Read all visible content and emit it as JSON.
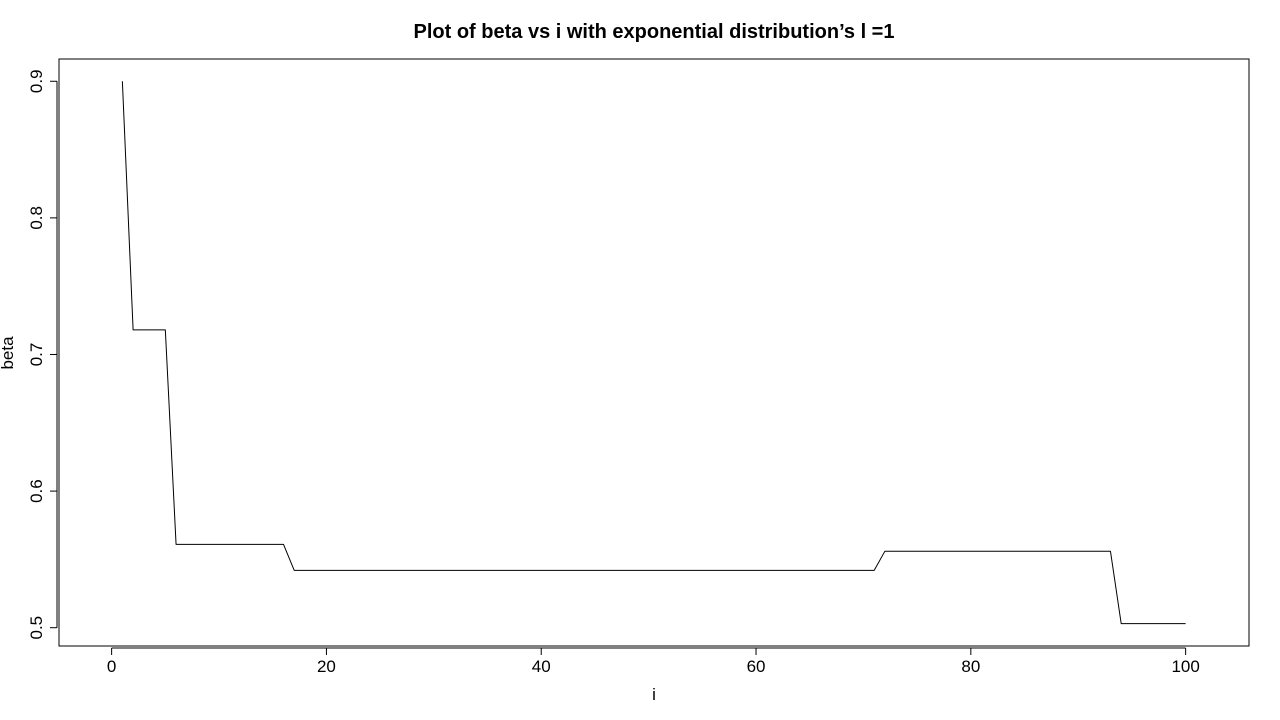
{
  "chart_data": {
    "type": "line",
    "title": "Plot of beta vs i with exponential distribution’s l =1",
    "xlabel": "i",
    "ylabel": "beta",
    "xlim": [
      -4.9,
      105.9
    ],
    "ylim": [
      0.4866,
      0.9163
    ],
    "x_ticks": [
      0,
      20,
      40,
      60,
      80,
      100
    ],
    "x_tick_labels": [
      "0",
      "20",
      "40",
      "60",
      "80",
      "100"
    ],
    "y_ticks": [
      0.5,
      0.6,
      0.7,
      0.8,
      0.9
    ],
    "y_tick_labels": [
      "0.5",
      "0.6",
      "0.7",
      "0.8",
      "0.9"
    ],
    "grid": false,
    "legend": "none",
    "line_color": "#000000",
    "series": [
      {
        "x": [
          1,
          2,
          3,
          4,
          5,
          6,
          7,
          8,
          9,
          10,
          11,
          12,
          13,
          14,
          15,
          16,
          17,
          18,
          19,
          20,
          21,
          22,
          23,
          24,
          25,
          26,
          27,
          28,
          29,
          30,
          31,
          32,
          33,
          34,
          35,
          36,
          37,
          38,
          39,
          40,
          41,
          42,
          43,
          44,
          45,
          46,
          47,
          48,
          49,
          50,
          51,
          52,
          53,
          54,
          55,
          56,
          57,
          58,
          59,
          60,
          61,
          62,
          63,
          64,
          65,
          66,
          67,
          68,
          69,
          70,
          71,
          72,
          73,
          74,
          75,
          76,
          77,
          78,
          79,
          80,
          81,
          82,
          83,
          84,
          85,
          86,
          87,
          88,
          89,
          90,
          91,
          92,
          93,
          94,
          95,
          96,
          97,
          98,
          99,
          100
        ],
        "values": [
          0.9,
          0.718,
          0.718,
          0.718,
          0.718,
          0.561,
          0.561,
          0.561,
          0.561,
          0.561,
          0.561,
          0.561,
          0.561,
          0.561,
          0.561,
          0.561,
          0.542,
          0.542,
          0.542,
          0.542,
          0.542,
          0.542,
          0.542,
          0.542,
          0.542,
          0.542,
          0.542,
          0.542,
          0.542,
          0.542,
          0.542,
          0.542,
          0.542,
          0.542,
          0.542,
          0.542,
          0.542,
          0.542,
          0.542,
          0.542,
          0.542,
          0.542,
          0.542,
          0.542,
          0.542,
          0.542,
          0.542,
          0.542,
          0.542,
          0.542,
          0.542,
          0.542,
          0.542,
          0.542,
          0.542,
          0.542,
          0.542,
          0.542,
          0.542,
          0.542,
          0.542,
          0.542,
          0.542,
          0.542,
          0.542,
          0.542,
          0.542,
          0.542,
          0.542,
          0.542,
          0.542,
          0.556,
          0.556,
          0.556,
          0.556,
          0.556,
          0.556,
          0.556,
          0.556,
          0.556,
          0.556,
          0.556,
          0.556,
          0.556,
          0.556,
          0.556,
          0.556,
          0.556,
          0.556,
          0.556,
          0.556,
          0.556,
          0.556,
          0.503,
          0.503,
          0.503,
          0.503,
          0.503,
          0.503,
          0.503
        ]
      }
    ]
  }
}
